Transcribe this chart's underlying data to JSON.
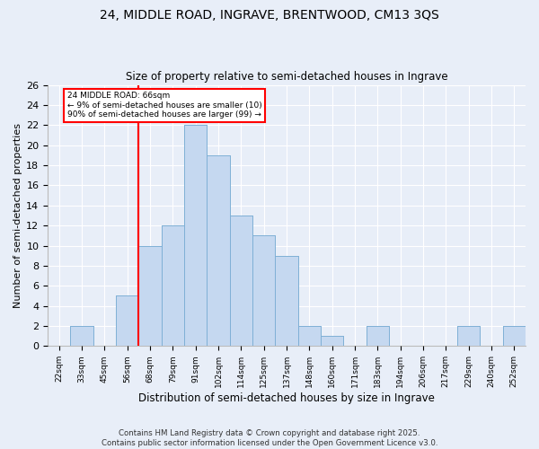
{
  "title1": "24, MIDDLE ROAD, INGRAVE, BRENTWOOD, CM13 3QS",
  "title2": "Size of property relative to semi-detached houses in Ingrave",
  "xlabel": "Distribution of semi-detached houses by size in Ingrave",
  "ylabel": "Number of semi-detached properties",
  "bin_labels": [
    "22sqm",
    "33sqm",
    "45sqm",
    "56sqm",
    "68sqm",
    "79sqm",
    "91sqm",
    "102sqm",
    "114sqm",
    "125sqm",
    "137sqm",
    "148sqm",
    "160sqm",
    "171sqm",
    "183sqm",
    "194sqm",
    "206sqm",
    "217sqm",
    "229sqm",
    "240sqm",
    "252sqm"
  ],
  "bar_values": [
    0,
    2,
    0,
    5,
    10,
    12,
    22,
    19,
    13,
    11,
    9,
    2,
    1,
    0,
    2,
    0,
    0,
    0,
    2,
    0,
    2
  ],
  "bar_color": "#c5d8f0",
  "bar_edgecolor": "#7aadd4",
  "vline_x": 3.5,
  "vline_color": "red",
  "annotation_text": "24 MIDDLE ROAD: 66sqm\n← 9% of semi-detached houses are smaller (10)\n90% of semi-detached houses are larger (99) →",
  "annotation_box_color": "white",
  "annotation_box_edgecolor": "red",
  "ylim": [
    0,
    26
  ],
  "yticks": [
    0,
    2,
    4,
    6,
    8,
    10,
    12,
    14,
    16,
    18,
    20,
    22,
    24,
    26
  ],
  "footer": "Contains HM Land Registry data © Crown copyright and database right 2025.\nContains public sector information licensed under the Open Government Licence v3.0.",
  "background_color": "#e8eef8",
  "grid_color": "#ffffff"
}
